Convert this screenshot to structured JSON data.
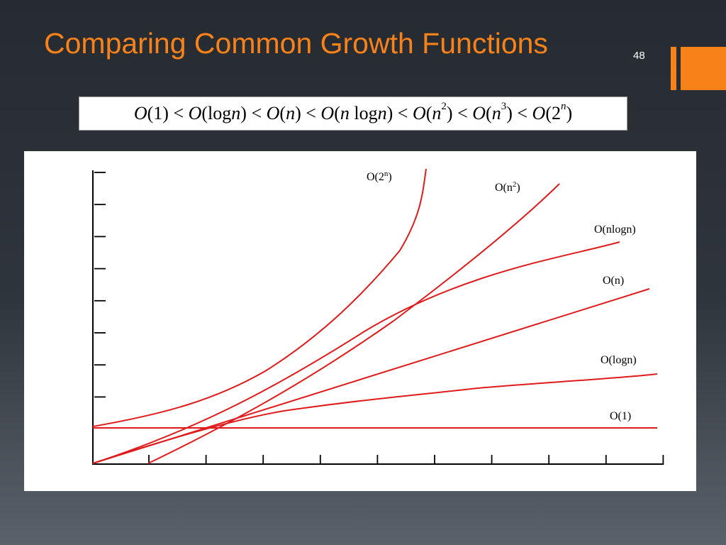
{
  "slide": {
    "title": "Comparing Common Growth Functions",
    "number": "48",
    "accent_color": "#f7821a"
  },
  "formula": {
    "terms": [
      {
        "pre": "(1)",
        "italic": "",
        "post": "",
        "sup": "",
        "tail": ""
      },
      {
        "pre": "(log",
        "italic": "n",
        "post": ")",
        "sup": "",
        "tail": ""
      },
      {
        "pre": "(",
        "italic": "n",
        "post": ")",
        "sup": "",
        "tail": ""
      },
      {
        "pre": "(",
        "italic": "n",
        "post": " log",
        "sup": "",
        "tail": ""
      },
      {
        "pre": "(",
        "italic": "n",
        "post": "",
        "sup": "2",
        "tail": ")"
      },
      {
        "pre": "(",
        "italic": "n",
        "post": "",
        "sup": "3",
        "tail": ")"
      },
      {
        "pre": "(2",
        "italic": "",
        "post": "",
        "sup": "n",
        "tail": ")"
      }
    ],
    "prefix": "O",
    "separator": "<",
    "nlogn_suffix_italic": "n",
    "nlogn_suffix": ")"
  },
  "chart_data": {
    "type": "line",
    "line_color": "#e01b1b",
    "x_ticks": 10,
    "y_ticks": 8,
    "series": [
      {
        "name": "O(1)",
        "base": "O(1)",
        "sup": ""
      },
      {
        "name": "O(logn)",
        "base": "O(logn)",
        "sup": ""
      },
      {
        "name": "O(n)",
        "base": "O(n)",
        "sup": ""
      },
      {
        "name": "O(nlogn)",
        "base": "O(nlogn)",
        "sup": ""
      },
      {
        "name": "O(n2)",
        "base": "O(n",
        "sup": "2",
        "close": ")"
      },
      {
        "name": "O(2n)",
        "base": "O(2",
        "sup": "n",
        "close": ")"
      }
    ]
  }
}
